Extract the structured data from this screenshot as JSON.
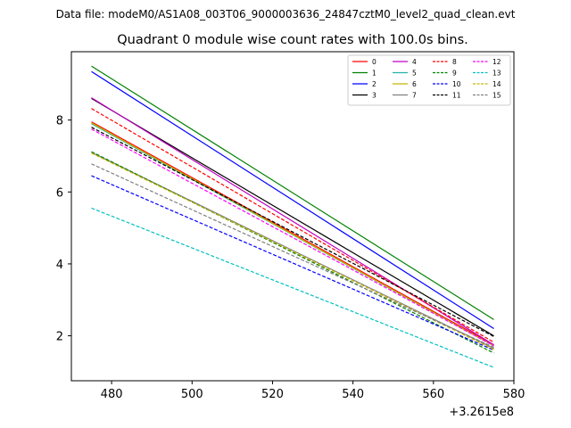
{
  "chart_data": {
    "type": "line",
    "suptitle": "Data file: modeM0/AS1A08_003T06_9000003636_24847cztM0_level2_quad_clean.evt",
    "title": "Quadrant 0 module wise count rates with 100.0s bins.",
    "xlabel": "",
    "ylabel": "",
    "x_offset_label": "+3.2615e8",
    "xlim": [
      470,
      580
    ],
    "ylim": [
      0.75,
      9.9
    ],
    "xticks": [
      480,
      500,
      520,
      540,
      560,
      580
    ],
    "yticks": [
      2,
      4,
      6,
      8
    ],
    "x": [
      475,
      575
    ],
    "series": [
      {
        "name": "0",
        "color": "#ff0000",
        "dash": "solid",
        "values": [
          7.95,
          1.75
        ]
      },
      {
        "name": "1",
        "color": "#008000",
        "dash": "solid",
        "values": [
          9.5,
          2.45
        ]
      },
      {
        "name": "2",
        "color": "#0000ff",
        "dash": "solid",
        "values": [
          9.35,
          2.2
        ]
      },
      {
        "name": "3",
        "color": "#000000",
        "dash": "solid",
        "values": [
          8.6,
          2.0
        ]
      },
      {
        "name": "4",
        "color": "#c000c0",
        "dash": "solid",
        "values": [
          8.62,
          1.75
        ]
      },
      {
        "name": "5",
        "color": "#20b2aa",
        "dash": "solid",
        "values": [
          7.9,
          1.72
        ]
      },
      {
        "name": "6",
        "color": "#c8b400",
        "dash": "solid",
        "values": [
          7.92,
          1.72
        ]
      },
      {
        "name": "7",
        "color": "#808080",
        "dash": "solid",
        "values": [
          7.1,
          1.65
        ]
      },
      {
        "name": "8",
        "color": "#ff0000",
        "dash": "dashed",
        "values": [
          8.32,
          1.82
        ]
      },
      {
        "name": "9",
        "color": "#008000",
        "dash": "dashed",
        "values": [
          7.12,
          1.52
        ]
      },
      {
        "name": "10",
        "color": "#0000ff",
        "dash": "dashed",
        "values": [
          6.45,
          1.6
        ]
      },
      {
        "name": "11",
        "color": "#000000",
        "dash": "dashed",
        "values": [
          7.8,
          1.98
        ]
      },
      {
        "name": "12",
        "color": "#ff00ff",
        "dash": "dashed",
        "values": [
          7.75,
          1.72
        ]
      },
      {
        "name": "13",
        "color": "#00bfbf",
        "dash": "dashed",
        "values": [
          5.55,
          1.12
        ]
      },
      {
        "name": "14",
        "color": "#c8b400",
        "dash": "dashed",
        "values": [
          7.08,
          1.62
        ]
      },
      {
        "name": "15",
        "color": "#808080",
        "dash": "dashed",
        "values": [
          6.78,
          1.68
        ]
      }
    ],
    "legend": {
      "position": "top-right",
      "columns": 4
    }
  }
}
